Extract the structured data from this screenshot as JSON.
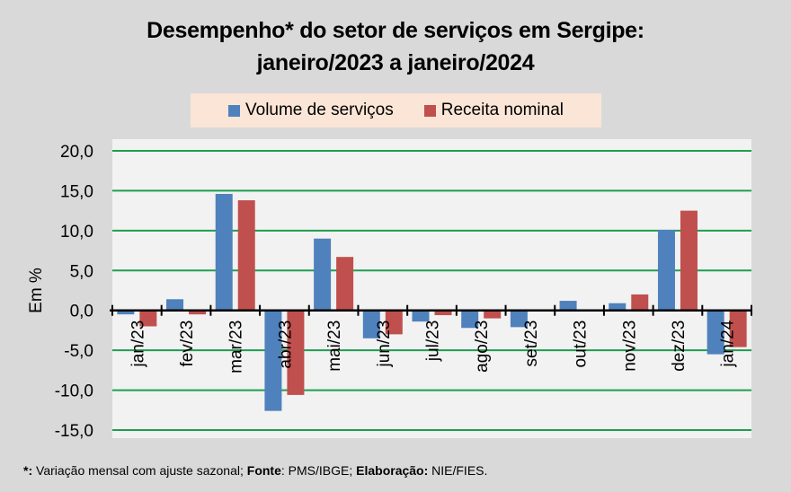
{
  "chart_data": {
    "type": "bar",
    "title": "Desempenho* do setor de serviços em Sergipe:",
    "subtitle": "janeiro/2023 a janeiro/2024",
    "xlabel": "",
    "ylabel": "Em %",
    "ylim": [
      -15,
      20
    ],
    "yticks": [
      20,
      15,
      10,
      5,
      0,
      -5,
      -10,
      -15
    ],
    "ytick_labels": [
      "20,0",
      "15,0",
      "10,0",
      "5,0",
      "0,0",
      "-5,0",
      "-10,0",
      "-15,0"
    ],
    "grid": true,
    "legend_position": "top",
    "categories": [
      "jan/23",
      "fev/23",
      "mar/23",
      "abr/23",
      "mai/23",
      "jun/23",
      "jul/23",
      "ago/23",
      "set/23",
      "out/23",
      "nov/23",
      "dez/23",
      "jan/24"
    ],
    "series": [
      {
        "name": "Volume de serviços",
        "color": "#4f81bd",
        "values": [
          -0.5,
          1.4,
          14.6,
          -12.6,
          9.0,
          -3.5,
          -1.4,
          -2.2,
          -2.1,
          1.2,
          0.9,
          10.1,
          -5.5
        ]
      },
      {
        "name": "Receita nominal",
        "color": "#c0504d",
        "values": [
          -2.0,
          -0.5,
          13.8,
          -10.6,
          6.7,
          -3.0,
          -0.6,
          -1.0,
          0.0,
          0.1,
          2.0,
          12.5,
          -4.6
        ]
      }
    ]
  },
  "colors": {
    "grid": "#1e9e4f",
    "plot_bg": "#f2f2f2",
    "legend_bg": "#fbe5d6"
  },
  "footnote": {
    "star": "*:",
    "star_text": " Variação mensal com ajuste sazonal; ",
    "fonte_label": "Fonte",
    "fonte_text": ": PMS/IBGE; ",
    "elab_label": "Elaboração:",
    "elab_text": " NIE/FIES."
  }
}
